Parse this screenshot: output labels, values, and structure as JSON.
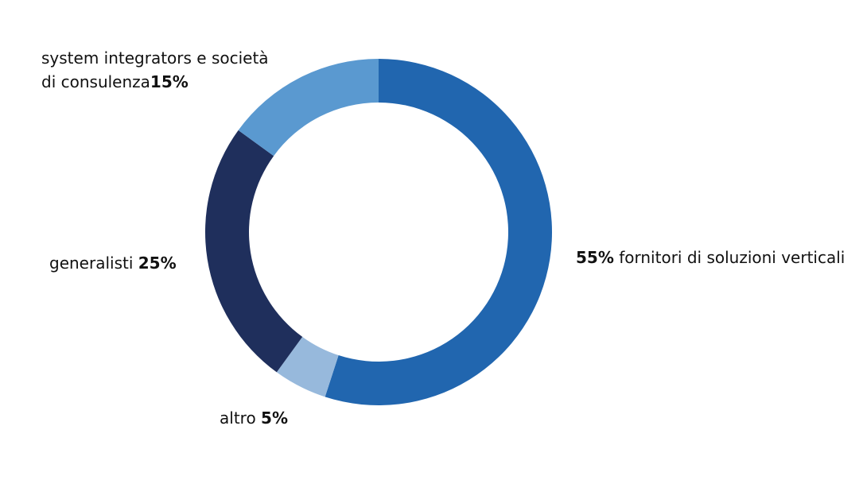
{
  "chart_data": {
    "type": "pie",
    "style": "donut",
    "start": "top",
    "direction": "clockwise",
    "slices": [
      {
        "label": "fornitori di soluzioni verticali",
        "value": 55,
        "value_label": "55%",
        "color": "#2166af"
      },
      {
        "label": "altro",
        "value": 5,
        "value_label": "5%",
        "color": "#97b9dc"
      },
      {
        "label": "generalisti",
        "value": 25,
        "value_label": "25%",
        "color": "#1f2f5c"
      },
      {
        "label": "system integrators e società di consulenza",
        "label_lines": [
          "system integrators e società",
          "di consulenza"
        ],
        "value": 15,
        "value_label": "15%",
        "color": "#5a99d0"
      }
    ]
  }
}
